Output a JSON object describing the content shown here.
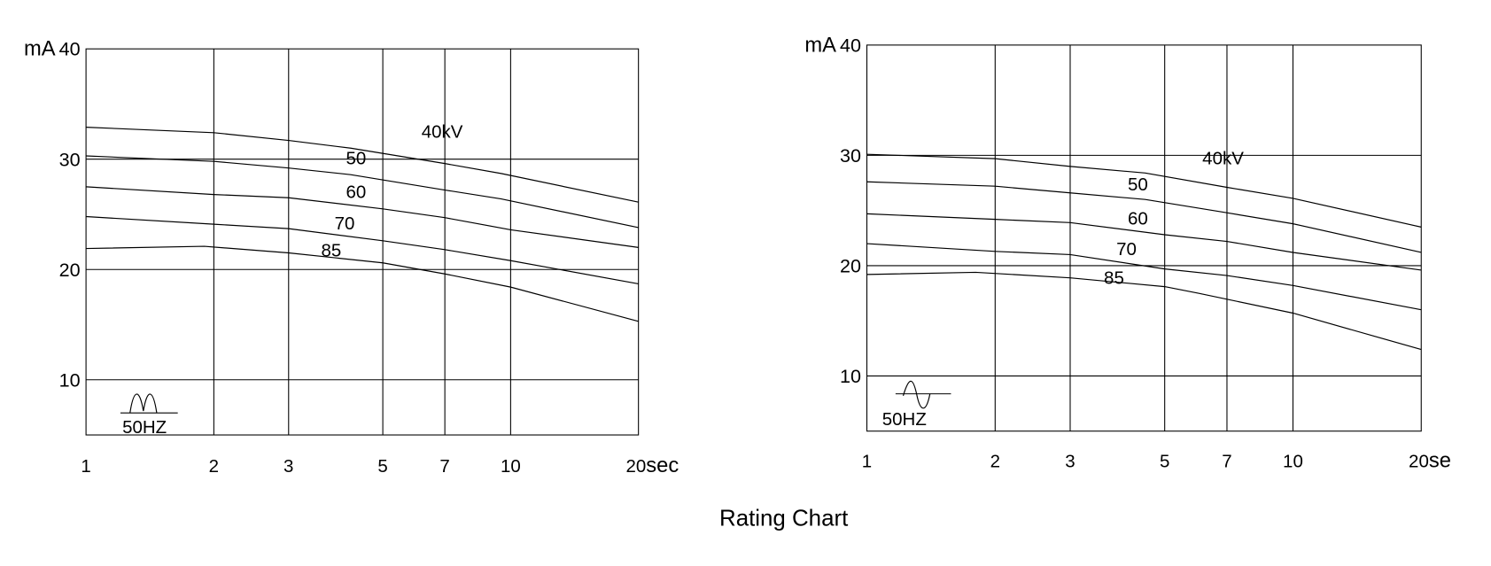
{
  "title": "Rating Chart",
  "chart_data": [
    {
      "type": "line",
      "ylabel": "mA",
      "xunit": "sec",
      "x_scale": "log",
      "xlim": [
        1,
        20
      ],
      "ylim": [
        5,
        40
      ],
      "x_ticks": [
        1,
        2,
        3,
        5,
        7,
        10,
        20
      ],
      "x_tick_labels": [
        "1",
        "2",
        "3",
        "5",
        "7",
        "10",
        "20"
      ],
      "y_ticks": [
        10,
        20,
        30,
        40
      ],
      "y_tick_labels": [
        "10",
        "20",
        "30",
        "40"
      ],
      "grid": true,
      "waveform": "rectified-double-hump",
      "waveform_label": "50HZ",
      "series": [
        {
          "name": "40kV",
          "x": [
            1,
            2,
            3,
            4.2,
            7,
            9.5,
            20
          ],
          "y": [
            32.9,
            32.4,
            31.7,
            31.0,
            29.6,
            28.7,
            26.1
          ]
        },
        {
          "name": "50",
          "x": [
            1,
            2,
            3,
            4.2,
            7,
            9.5,
            20
          ],
          "y": [
            30.3,
            29.8,
            29.2,
            28.6,
            27.2,
            26.4,
            23.8
          ]
        },
        {
          "name": "60",
          "x": [
            1,
            2,
            3,
            5,
            7,
            10,
            20
          ],
          "y": [
            27.5,
            26.8,
            26.5,
            25.5,
            24.7,
            23.6,
            22.0
          ]
        },
        {
          "name": "70",
          "x": [
            1,
            2,
            3,
            5,
            7,
            10,
            20
          ],
          "y": [
            24.8,
            24.1,
            23.7,
            22.6,
            21.8,
            20.8,
            18.7
          ]
        },
        {
          "name": "85",
          "x": [
            1,
            1.9,
            3,
            5,
            7,
            10,
            20
          ],
          "y": [
            21.9,
            22.1,
            21.5,
            20.6,
            19.6,
            18.4,
            15.3
          ]
        }
      ]
    },
    {
      "type": "line",
      "ylabel": "mA",
      "xunit": "se",
      "x_scale": "log",
      "xlim": [
        1,
        20
      ],
      "ylim": [
        5,
        40
      ],
      "x_ticks": [
        1,
        2,
        3,
        5,
        7,
        10,
        20
      ],
      "x_tick_labels": [
        "1",
        "2",
        "3",
        "5",
        "7",
        "10",
        "20"
      ],
      "y_ticks": [
        10,
        20,
        30,
        40
      ],
      "y_tick_labels": [
        "10",
        "20",
        "30",
        "40"
      ],
      "grid": true,
      "waveform": "sine",
      "waveform_label": "50HZ",
      "series": [
        {
          "name": "40kV",
          "x": [
            1,
            2,
            3,
            4.5,
            7,
            10,
            20
          ],
          "y": [
            30.1,
            29.7,
            29.0,
            28.4,
            27.1,
            26.1,
            23.5
          ]
        },
        {
          "name": "50",
          "x": [
            1,
            2,
            3,
            4.5,
            7,
            10,
            20
          ],
          "y": [
            27.6,
            27.2,
            26.6,
            26.0,
            24.8,
            23.8,
            21.2
          ]
        },
        {
          "name": "60",
          "x": [
            1,
            2,
            3,
            5,
            7,
            10,
            20
          ],
          "y": [
            24.7,
            24.2,
            23.9,
            22.8,
            22.2,
            21.2,
            19.6
          ]
        },
        {
          "name": "70",
          "x": [
            1,
            2,
            3,
            5,
            7,
            10,
            20
          ],
          "y": [
            22.0,
            21.3,
            21.0,
            19.7,
            19.1,
            18.2,
            16.0
          ]
        },
        {
          "name": "85",
          "x": [
            1,
            1.8,
            3,
            5,
            6,
            10,
            20
          ],
          "y": [
            19.2,
            19.4,
            18.9,
            18.1,
            17.5,
            15.7,
            12.4
          ]
        }
      ]
    }
  ]
}
